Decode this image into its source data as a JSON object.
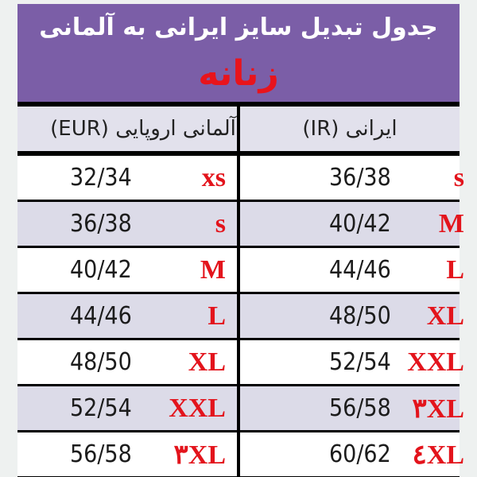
{
  "title": "جدول تبدیل سایز ایرانی به آلمانی",
  "subtitle": "زنانه",
  "columns": {
    "german": "آلمانی اروپایی (EUR)",
    "iranian": "ایرانی (IR)"
  },
  "rows": [
    {
      "german_value": "32/34",
      "german_size": "xs",
      "iranian_value": "36/38",
      "iranian_size": "s"
    },
    {
      "german_value": "36/38",
      "german_size": "s",
      "iranian_value": "40/42",
      "iranian_size": "M"
    },
    {
      "german_value": "40/42",
      "german_size": "M",
      "iranian_value": "44/46",
      "iranian_size": "L"
    },
    {
      "german_value": "44/46",
      "german_size": "L",
      "iranian_value": "48/50",
      "iranian_size": "XL"
    },
    {
      "german_value": "48/50",
      "german_size": "XL",
      "iranian_value": "52/54",
      "iranian_size": "XXL"
    },
    {
      "german_value": "52/54",
      "german_size": "XXL",
      "iranian_value": "56/58",
      "iranian_size": "٣XL"
    },
    {
      "german_value": "56/58",
      "german_size": "٣XL",
      "iranian_value": "60/62",
      "iranian_size": "٤XL"
    }
  ],
  "colors": {
    "banner": "#7b5ea7",
    "size_label": "#e3141c",
    "alt_row": "#dcdbe8"
  }
}
